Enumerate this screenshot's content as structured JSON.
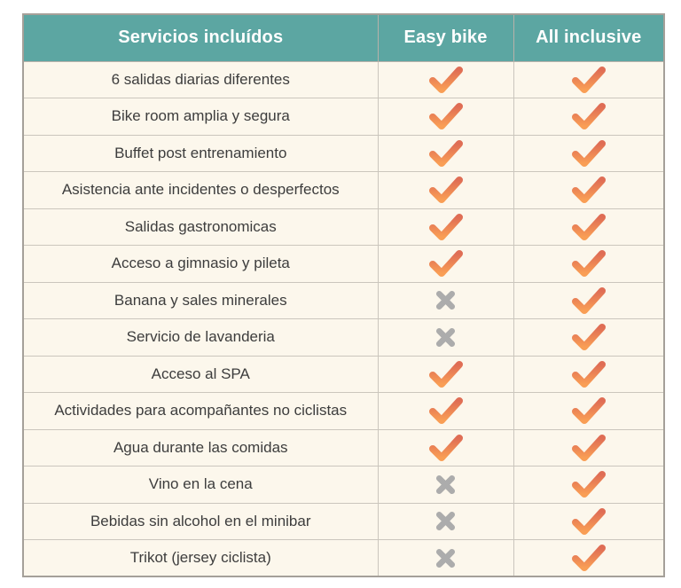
{
  "table": {
    "headers": [
      "Servicios incluídos",
      "Easy bike",
      "All inclusive"
    ],
    "rows": [
      {
        "service": "6 salidas diarias diferentes",
        "easy_bike": "check",
        "all_inclusive": "check"
      },
      {
        "service": "Bike room amplia y segura",
        "easy_bike": "check",
        "all_inclusive": "check"
      },
      {
        "service": "Buffet post entrenamiento",
        "easy_bike": "check",
        "all_inclusive": "check"
      },
      {
        "service": "Asistencia ante incidentes o desperfectos",
        "easy_bike": "check",
        "all_inclusive": "check"
      },
      {
        "service": "Salidas gastronomicas",
        "easy_bike": "check",
        "all_inclusive": "check"
      },
      {
        "service": "Acceso a gimnasio y pileta",
        "easy_bike": "check",
        "all_inclusive": "check"
      },
      {
        "service": "Banana y sales minerales",
        "easy_bike": "cross",
        "all_inclusive": "check"
      },
      {
        "service": "Servicio de lavanderia",
        "easy_bike": "cross",
        "all_inclusive": "check"
      },
      {
        "service": "Acceso al SPA",
        "easy_bike": "check",
        "all_inclusive": "check"
      },
      {
        "service": "Actividades para acompañantes no ciclistas",
        "easy_bike": "check",
        "all_inclusive": "check"
      },
      {
        "service": "Agua durante las comidas",
        "easy_bike": "check",
        "all_inclusive": "check"
      },
      {
        "service": "Vino en la cena",
        "easy_bike": "cross",
        "all_inclusive": "check"
      },
      {
        "service": "Bebidas sin alcohol en el minibar",
        "easy_bike": "cross",
        "all_inclusive": "check"
      },
      {
        "service": "Trikot (jersey ciclista)",
        "easy_bike": "cross",
        "all_inclusive": "check"
      }
    ],
    "icon_names": {
      "check": "check-icon",
      "cross": "cross-icon"
    }
  },
  "colors": {
    "header_bg": "#5ca6a2",
    "row_bg": "#fcf7ec",
    "text": "#3d3d3d",
    "check_gradient_top": "#df6d55",
    "check_gradient_bottom": "#f99e55",
    "cross": "#acacac"
  }
}
